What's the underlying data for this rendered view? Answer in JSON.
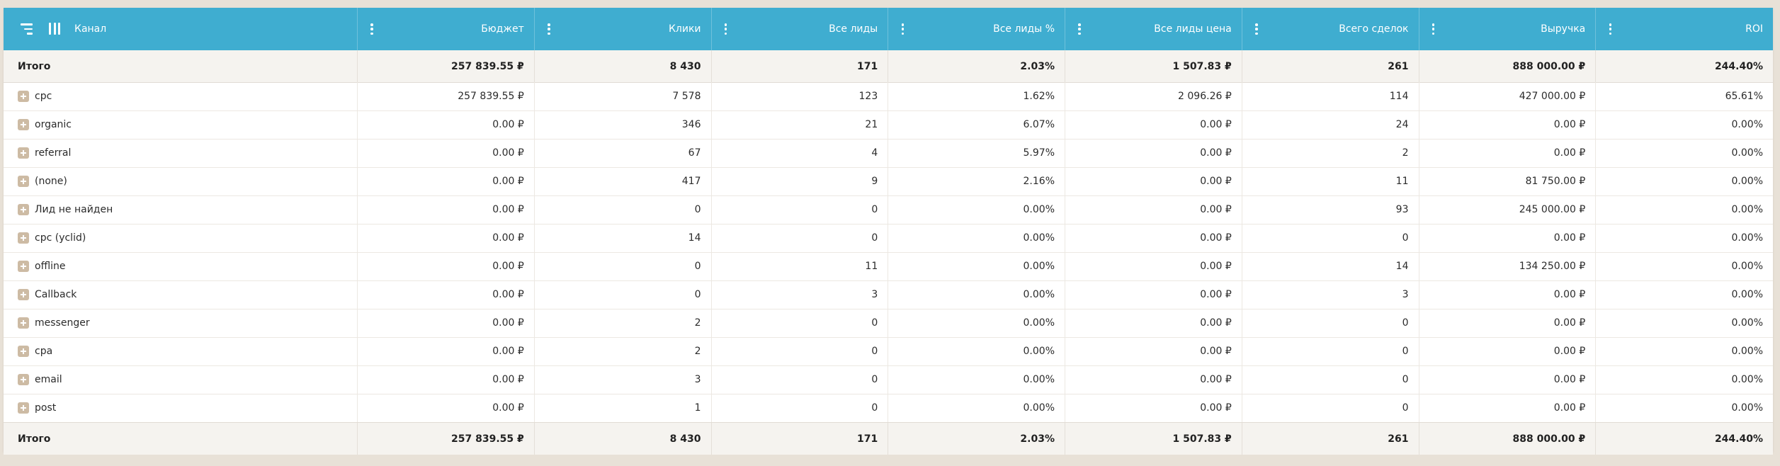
{
  "header": {
    "channel": "Канал",
    "columns": [
      "Бюджет",
      "Клики",
      "Все лиды",
      "Все лиды %",
      "Все лиды цена",
      "Всего сделок",
      "Выручка",
      "ROI"
    ]
  },
  "totals": {
    "label": "Итого",
    "values": [
      "257 839.55 ₽",
      "8 430",
      "171",
      "2.03%",
      "1 507.83 ₽",
      "261",
      "888 000.00 ₽",
      "244.40%"
    ]
  },
  "rows": [
    {
      "name": "cpc",
      "values": [
        "257 839.55 ₽",
        "7 578",
        "123",
        "1.62%",
        "2 096.26 ₽",
        "114",
        "427 000.00 ₽",
        "65.61%"
      ]
    },
    {
      "name": "organic",
      "values": [
        "0.00 ₽",
        "346",
        "21",
        "6.07%",
        "0.00 ₽",
        "24",
        "0.00 ₽",
        "0.00%"
      ]
    },
    {
      "name": "referral",
      "values": [
        "0.00 ₽",
        "67",
        "4",
        "5.97%",
        "0.00 ₽",
        "2",
        "0.00 ₽",
        "0.00%"
      ]
    },
    {
      "name": "(none)",
      "values": [
        "0.00 ₽",
        "417",
        "9",
        "2.16%",
        "0.00 ₽",
        "11",
        "81 750.00 ₽",
        "0.00%"
      ]
    },
    {
      "name": "Лид не найден",
      "values": [
        "0.00 ₽",
        "0",
        "0",
        "0.00%",
        "0.00 ₽",
        "93",
        "245 000.00 ₽",
        "0.00%"
      ]
    },
    {
      "name": "cpc (yclid)",
      "values": [
        "0.00 ₽",
        "14",
        "0",
        "0.00%",
        "0.00 ₽",
        "0",
        "0.00 ₽",
        "0.00%"
      ]
    },
    {
      "name": "offline",
      "values": [
        "0.00 ₽",
        "0",
        "11",
        "0.00%",
        "0.00 ₽",
        "14",
        "134 250.00 ₽",
        "0.00%"
      ]
    },
    {
      "name": "Callback",
      "values": [
        "0.00 ₽",
        "0",
        "3",
        "0.00%",
        "0.00 ₽",
        "3",
        "0.00 ₽",
        "0.00%"
      ]
    },
    {
      "name": "messenger",
      "values": [
        "0.00 ₽",
        "2",
        "0",
        "0.00%",
        "0.00 ₽",
        "0",
        "0.00 ₽",
        "0.00%"
      ]
    },
    {
      "name": "cpa",
      "values": [
        "0.00 ₽",
        "2",
        "0",
        "0.00%",
        "0.00 ₽",
        "0",
        "0.00 ₽",
        "0.00%"
      ]
    },
    {
      "name": "email",
      "values": [
        "0.00 ₽",
        "3",
        "0",
        "0.00%",
        "0.00 ₽",
        "0",
        "0.00 ₽",
        "0.00%"
      ]
    },
    {
      "name": "post",
      "values": [
        "0.00 ₽",
        "1",
        "0",
        "0.00%",
        "0.00 ₽",
        "0",
        "0.00 ₽",
        "0.00%"
      ]
    }
  ],
  "colors": {
    "header_bg": "#3fadd0",
    "total_bg": "#f5f3ef",
    "expand_icon": "#cdbba4",
    "page_bg": "#e8e1d7"
  },
  "icons": {
    "sort": "sort-lines-icon",
    "columns": "columns-icon",
    "column_menu": "kebab-menu-icon",
    "expand": "plus-square-icon"
  }
}
